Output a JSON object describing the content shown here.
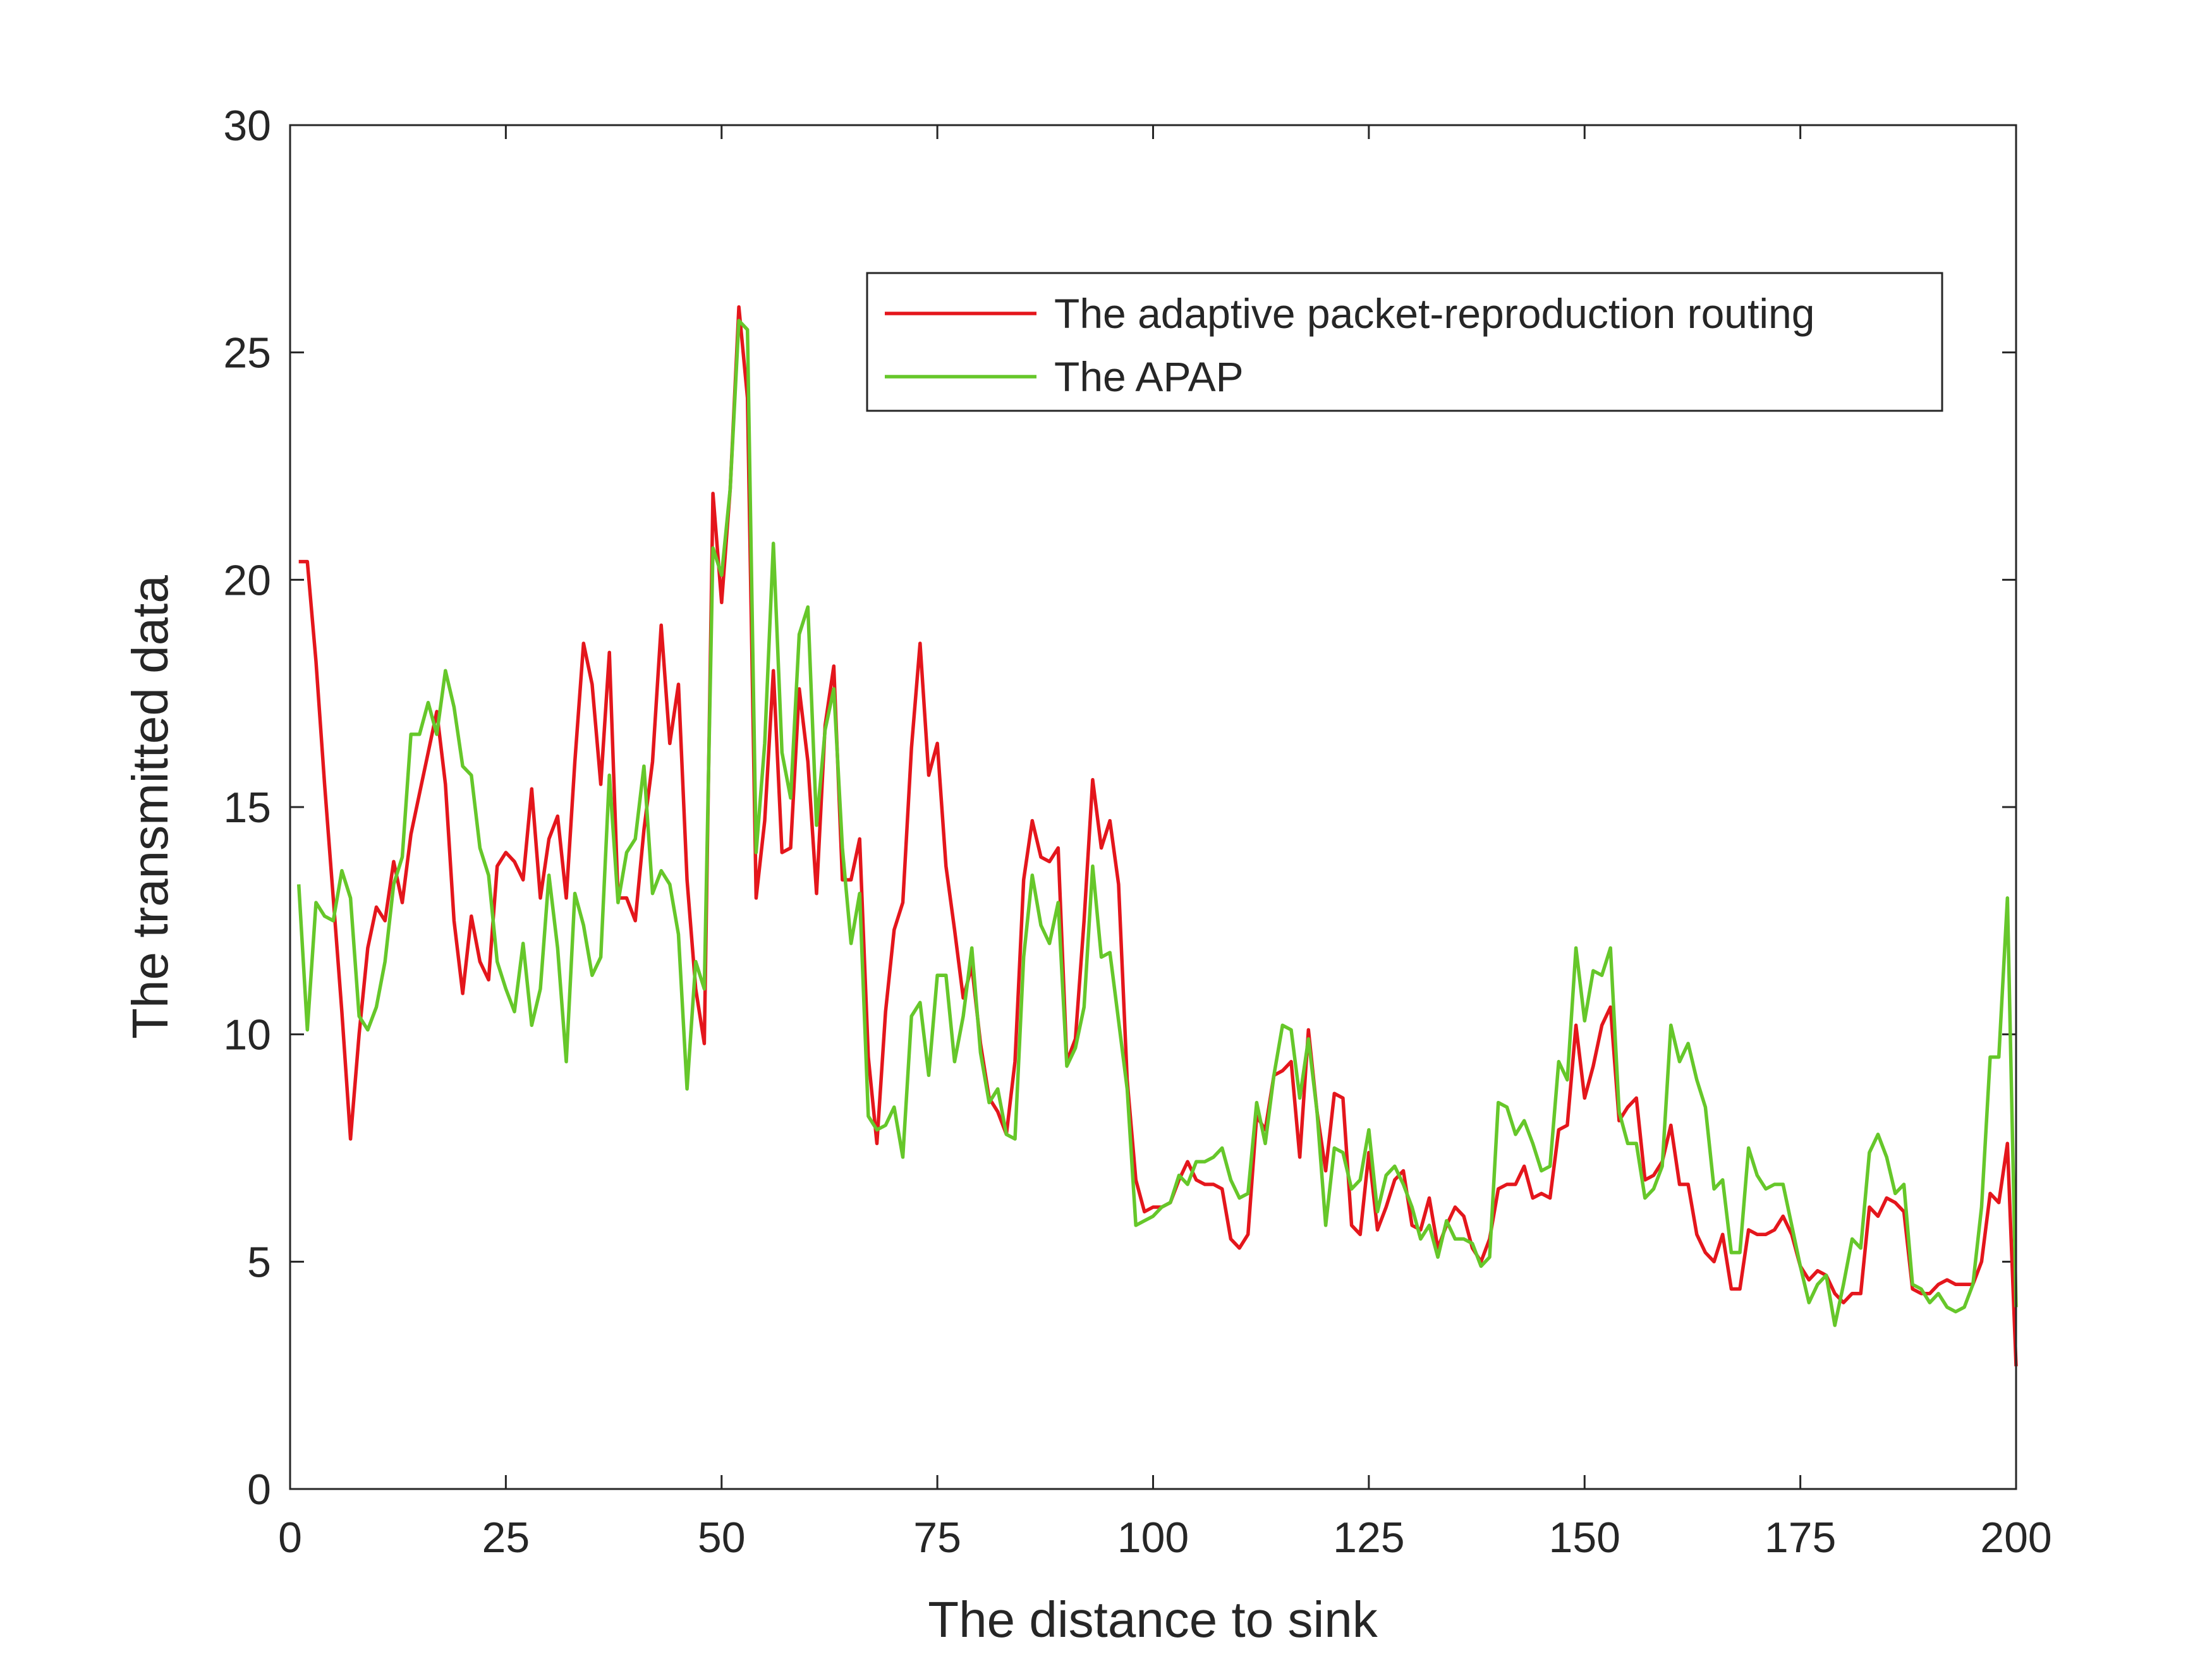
{
  "chart_data": {
    "type": "line",
    "x_label": "The distance to sink",
    "y_label": "The transmitted data",
    "x": [
      1,
      2,
      3,
      4,
      5,
      6,
      7,
      8,
      9,
      10,
      11,
      12,
      13,
      14,
      15,
      16,
      17,
      18,
      19,
      20,
      21,
      22,
      23,
      24,
      25,
      26,
      27,
      28,
      29,
      30,
      31,
      32,
      33,
      34,
      35,
      36,
      37,
      38,
      39,
      40,
      41,
      42,
      43,
      44,
      45,
      46,
      47,
      48,
      49,
      50,
      51,
      52,
      53,
      54,
      55,
      56,
      57,
      58,
      59,
      60,
      61,
      62,
      63,
      64,
      65,
      66,
      67,
      68,
      69,
      70,
      71,
      72,
      73,
      74,
      75,
      76,
      77,
      78,
      79,
      80,
      81,
      82,
      83,
      84,
      85,
      86,
      87,
      88,
      89,
      90,
      91,
      92,
      93,
      94,
      95,
      96,
      97,
      98,
      99,
      100,
      101,
      102,
      103,
      104,
      105,
      106,
      107,
      108,
      109,
      110,
      111,
      112,
      113,
      114,
      115,
      116,
      117,
      118,
      119,
      120,
      121,
      122,
      123,
      124,
      125,
      126,
      127,
      128,
      129,
      130,
      131,
      132,
      133,
      134,
      135,
      136,
      137,
      138,
      139,
      140,
      141,
      142,
      143,
      144,
      145,
      146,
      147,
      148,
      149,
      150,
      151,
      152,
      153,
      154,
      155,
      156,
      157,
      158,
      159,
      160,
      161,
      162,
      163,
      164,
      165,
      166,
      167,
      168,
      169,
      170,
      171,
      172,
      173,
      174,
      175,
      176,
      177,
      178,
      179,
      180,
      181,
      182,
      183,
      184,
      185,
      186,
      187,
      188,
      189,
      190,
      191,
      192,
      193,
      194,
      195,
      196,
      197,
      198,
      199,
      200
    ],
    "series": [
      {
        "name": "The adaptive packet-reproduction routing",
        "color": "#e4161c",
        "values": [
          20.4,
          20.4,
          18.2,
          15.5,
          13,
          10.5,
          7.7,
          10,
          11.9,
          12.8,
          12.5,
          13.8,
          12.9,
          14.4,
          15.3,
          16.2,
          17.1,
          15.5,
          12.5,
          10.9,
          12.6,
          11.6,
          11.2,
          13.7,
          14.0,
          13.8,
          13.4,
          15.4,
          13.0,
          14.3,
          14.8,
          13.0,
          16.0,
          18.6,
          17.7,
          15.5,
          18.4,
          13.0,
          13.0,
          12.5,
          14.5,
          16.0,
          19.0,
          16.4,
          17.7,
          13.4,
          11.0,
          9.8,
          21.9,
          19.5,
          22.0,
          26.0,
          24.0,
          13.0,
          14.7,
          18.0,
          14.0,
          14.1,
          17.6,
          16.0,
          13.1,
          16.8,
          18.1,
          13.4,
          13.4,
          14.3,
          9.5,
          7.6,
          10.5,
          12.3,
          12.9,
          16.3,
          18.6,
          15.7,
          16.4,
          13.7,
          12.3,
          10.8,
          11.5,
          9.8,
          8.6,
          8.3,
          7.8,
          9.4,
          13.4,
          14.7,
          13.9,
          13.8,
          14.1,
          9.4,
          9.9,
          12.5,
          15.6,
          14.1,
          14.7,
          13.3,
          9.0,
          6.8,
          6.1,
          6.2,
          6.2,
          6.3,
          6.8,
          7.2,
          6.8,
          6.7,
          6.7,
          6.6,
          5.5,
          5.3,
          5.6,
          8.2,
          7.9,
          9.1,
          9.2,
          9.4,
          7.3,
          10.1,
          8.3,
          7.0,
          8.7,
          8.6,
          5.8,
          5.6,
          7.4,
          5.7,
          6.2,
          6.8,
          7.0,
          5.8,
          5.7,
          6.4,
          5.3,
          5.8,
          6.2,
          6.0,
          5.3,
          5.0,
          5.5,
          6.6,
          6.7,
          6.7,
          7.1,
          6.4,
          6.5,
          6.4,
          7.9,
          8.0,
          10.2,
          8.6,
          9.3,
          10.2,
          10.6,
          8.1,
          8.4,
          8.6,
          6.8,
          6.9,
          7.2,
          8.0,
          6.7,
          6.7,
          5.6,
          5.2,
          5.0,
          5.6,
          4.4,
          4.4,
          5.7,
          5.6,
          5.6,
          5.7,
          6.0,
          5.6,
          4.9,
          4.6,
          4.8,
          4.7,
          4.3,
          4.1,
          4.3,
          4.3,
          6.2,
          6.0,
          6.4,
          6.3,
          6.1,
          4.4,
          4.3,
          4.3,
          4.5,
          4.6,
          4.5,
          4.5,
          4.5,
          5.0,
          6.5,
          6.3,
          7.6,
          2.7
        ]
      },
      {
        "name": "The APAP",
        "color": "#66c72a",
        "values": [
          13.3,
          10.1,
          12.9,
          12.6,
          12.5,
          13.6,
          13.0,
          10.4,
          10.1,
          10.6,
          11.6,
          13.3,
          13.9,
          16.6,
          16.6,
          17.3,
          16.6,
          18.0,
          17.2,
          15.9,
          15.7,
          14.1,
          13.5,
          11.6,
          11.0,
          10.5,
          12.0,
          10.2,
          11.0,
          13.5,
          11.9,
          9.4,
          13.1,
          12.4,
          11.3,
          11.7,
          15.7,
          12.9,
          14.0,
          14.3,
          15.9,
          13.1,
          13.6,
          13.3,
          12.2,
          8.8,
          11.6,
          11.0,
          20.7,
          20.1,
          22.0,
          25.7,
          25.5,
          14.0,
          16.4,
          20.8,
          16.2,
          15.2,
          18.8,
          19.4,
          14.6,
          16.7,
          17.6,
          14.1,
          12.0,
          13.1,
          8.2,
          7.9,
          8.0,
          8.4,
          7.3,
          10.4,
          10.7,
          9.1,
          11.3,
          11.3,
          9.4,
          10.4,
          11.9,
          9.6,
          8.5,
          8.8,
          7.8,
          7.7,
          11.7,
          13.5,
          12.4,
          12.0,
          12.9,
          9.3,
          9.7,
          10.6,
          13.7,
          11.7,
          11.8,
          10.3,
          8.8,
          5.8,
          5.9,
          6.0,
          6.2,
          6.3,
          6.9,
          6.7,
          7.2,
          7.2,
          7.3,
          7.5,
          6.8,
          6.4,
          6.5,
          8.5,
          7.6,
          9.1,
          10.2,
          10.1,
          8.6,
          9.9,
          8.3,
          5.8,
          7.5,
          7.4,
          6.6,
          6.8,
          7.9,
          6.1,
          6.9,
          7.1,
          6.7,
          6.2,
          5.5,
          5.8,
          5.1,
          5.9,
          5.5,
          5.5,
          5.4,
          4.9,
          5.1,
          8.5,
          8.4,
          7.8,
          8.1,
          7.6,
          7.0,
          7.1,
          9.4,
          9.0,
          11.9,
          10.3,
          11.4,
          11.3,
          11.9,
          8.3,
          7.6,
          7.6,
          6.4,
          6.6,
          7.1,
          10.2,
          9.4,
          9.8,
          9.0,
          8.4,
          6.6,
          6.8,
          5.2,
          5.2,
          7.5,
          6.9,
          6.6,
          6.7,
          6.7,
          5.8,
          4.9,
          4.1,
          4.5,
          4.7,
          3.6,
          4.5,
          5.5,
          5.3,
          7.4,
          7.8,
          7.3,
          6.5,
          6.7,
          4.5,
          4.4,
          4.1,
          4.3,
          4.0,
          3.9,
          4.0,
          4.5,
          6.2,
          9.5,
          9.5,
          13.0,
          4.0
        ]
      }
    ],
    "xlim": [
      0,
      200
    ],
    "xticks": [
      0,
      25,
      50,
      75,
      100,
      125,
      150,
      175,
      200
    ],
    "ylim": [
      0,
      30
    ],
    "yticks": [
      0,
      5,
      10,
      15,
      20,
      25,
      30
    ],
    "grid": false
  }
}
